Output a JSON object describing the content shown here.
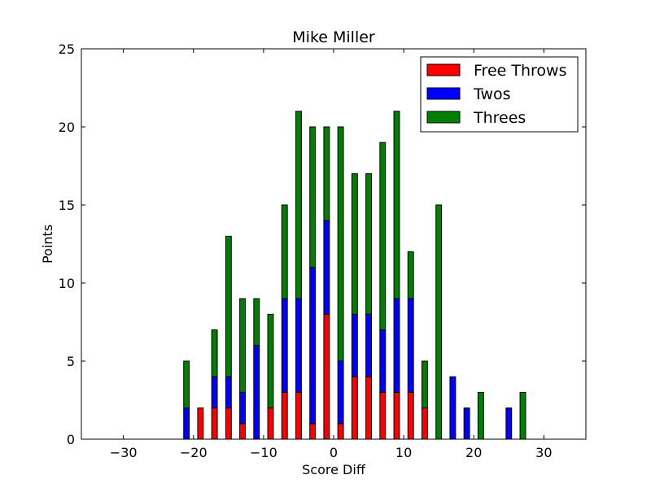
{
  "chart_data": {
    "type": "bar",
    "stacked": true,
    "title": "Mike Miller",
    "xlabel": "Score Diff",
    "ylabel": "Points",
    "xlim": [
      -36,
      36
    ],
    "ylim": [
      0,
      25
    ],
    "xticks": [
      -30,
      -20,
      -10,
      0,
      10,
      20,
      30
    ],
    "xtick_labels": [
      "−30",
      "−20",
      "−10",
      "0",
      "10",
      "20",
      "30"
    ],
    "yticks": [
      0,
      5,
      10,
      15,
      20,
      25
    ],
    "ytick_labels": [
      "0",
      "5",
      "10",
      "15",
      "20",
      "25"
    ],
    "grid": false,
    "legend_position": "top-right",
    "x": [
      -21,
      -19,
      -17,
      -15,
      -13,
      -11,
      -9,
      -7,
      -5,
      -3,
      -1,
      1,
      3,
      5,
      7,
      9,
      11,
      13,
      15,
      17,
      19,
      21,
      23,
      25,
      27
    ],
    "series": [
      {
        "name": "Free Throws",
        "color": "#ff0000",
        "values": [
          0,
          2,
          2,
          2,
          1,
          0,
          2,
          3,
          3,
          1,
          8,
          1,
          4,
          4,
          3,
          3,
          3,
          2,
          0,
          0,
          0,
          0,
          0,
          0,
          0
        ]
      },
      {
        "name": "Twos",
        "color": "#0000ff",
        "values": [
          2,
          0,
          2,
          2,
          2,
          6,
          0,
          6,
          6,
          10,
          6,
          4,
          4,
          4,
          4,
          6,
          6,
          0,
          0,
          4,
          2,
          0,
          0,
          2,
          0
        ]
      },
      {
        "name": "Threes",
        "color": "#008000",
        "values": [
          3,
          0,
          3,
          9,
          6,
          3,
          6,
          6,
          12,
          9,
          6,
          15,
          9,
          9,
          12,
          12,
          3,
          3,
          15,
          0,
          0,
          3,
          0,
          0,
          3
        ]
      }
    ],
    "totals": [
      5,
      2,
      7,
      13,
      9,
      9,
      8,
      15,
      21,
      20,
      20,
      20,
      17,
      17,
      19,
      21,
      12,
      5,
      15,
      4,
      2,
      3,
      0,
      2,
      3
    ]
  }
}
